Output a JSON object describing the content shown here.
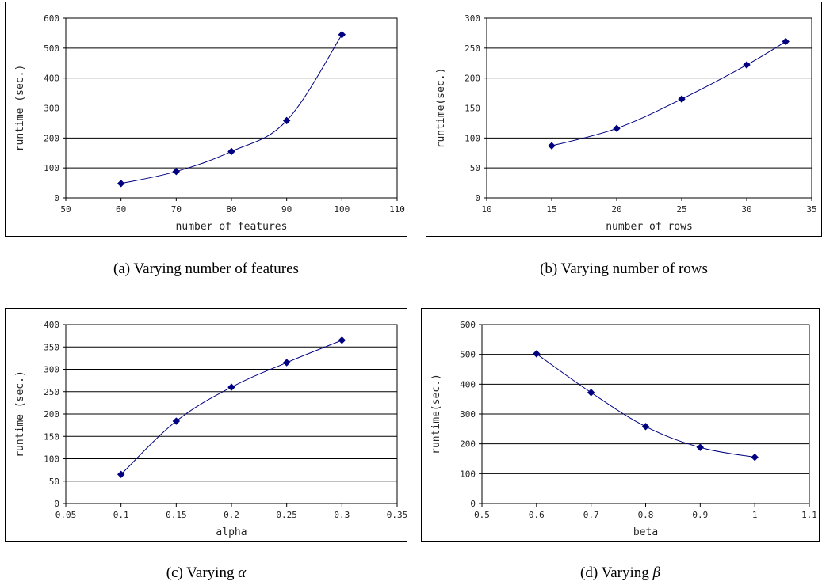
{
  "colors": {
    "series": "#000080",
    "grid": "#000000",
    "frame": "#000000"
  },
  "chart_data": [
    {
      "id": "a",
      "type": "line",
      "caption_prefix": "(a) Varying number of features",
      "caption_symbol": "",
      "xlabel": "number of features",
      "ylabel": "runtime (sec.)",
      "xlim": [
        50,
        110
      ],
      "xticks": [
        50,
        60,
        70,
        80,
        90,
        100,
        110
      ],
      "ylim": [
        0,
        600
      ],
      "yticks": [
        0,
        100,
        200,
        300,
        400,
        500,
        600
      ],
      "grid": "horizontal",
      "x": [
        60,
        70,
        80,
        90,
        100
      ],
      "y": [
        48,
        88,
        155,
        258,
        545
      ]
    },
    {
      "id": "b",
      "type": "line",
      "caption_prefix": "(b) Varying number of rows",
      "caption_symbol": "",
      "xlabel": "number of rows",
      "ylabel": "runtime(sec.)",
      "xlim": [
        10,
        35
      ],
      "xticks": [
        10,
        15,
        20,
        25,
        30,
        35
      ],
      "ylim": [
        0,
        300
      ],
      "yticks": [
        0,
        50,
        100,
        150,
        200,
        250,
        300
      ],
      "grid": "horizontal",
      "x": [
        15,
        20,
        25,
        30,
        33
      ],
      "y": [
        87,
        116,
        165,
        222,
        261
      ]
    },
    {
      "id": "c",
      "type": "line",
      "caption_prefix": "(c) Varying ",
      "caption_symbol": "α",
      "xlabel": "alpha",
      "ylabel": "runtime (sec.)",
      "xlim": [
        0.05,
        0.35
      ],
      "xticks": [
        0.05,
        0.1,
        0.15,
        0.2,
        0.25,
        0.3,
        0.35
      ],
      "ylim": [
        0,
        400
      ],
      "yticks": [
        0,
        50,
        100,
        150,
        200,
        250,
        300,
        350,
        400
      ],
      "grid": "horizontal",
      "x": [
        0.1,
        0.15,
        0.2,
        0.25,
        0.3
      ],
      "y": [
        65,
        184,
        260,
        315,
        365
      ]
    },
    {
      "id": "d",
      "type": "line",
      "caption_prefix": "(d) Varying ",
      "caption_symbol": "β",
      "xlabel": "beta",
      "ylabel": "runtime(sec.)",
      "xlim": [
        0.5,
        1.1
      ],
      "xticks": [
        0.5,
        0.6,
        0.7,
        0.8,
        0.9,
        1,
        1.1
      ],
      "ylim": [
        0,
        600
      ],
      "yticks": [
        0,
        100,
        200,
        300,
        400,
        500,
        600
      ],
      "grid": "horizontal",
      "x": [
        0.6,
        0.7,
        0.8,
        0.9,
        1
      ],
      "y": [
        502,
        372,
        258,
        188,
        155
      ]
    }
  ]
}
